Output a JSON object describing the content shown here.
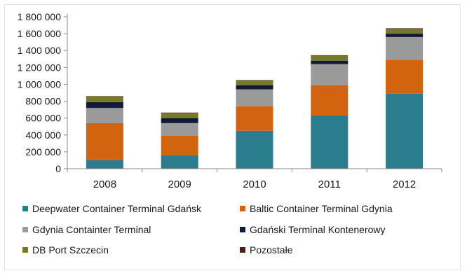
{
  "chart_data": {
    "type": "bar",
    "stacked": true,
    "title": "",
    "xlabel": "",
    "ylabel": "",
    "ylim": [
      0,
      1800000
    ],
    "yticks": [
      0,
      200000,
      400000,
      600000,
      800000,
      1000000,
      1200000,
      1400000,
      1600000,
      1800000
    ],
    "ytick_labels": [
      "0",
      "200 000",
      "400 000",
      "600 000",
      "800 000",
      "1 000 000",
      "1 200 000",
      "1 400 000",
      "1 600 000",
      "1 800 000"
    ],
    "categories": [
      "2008",
      "2009",
      "2010",
      "2011",
      "2012"
    ],
    "series": [
      {
        "name": "Deepwater Container Terminal Gdańsk",
        "color": "#2a7d8c",
        "values": [
          100000,
          160000,
          450000,
          630000,
          890000
        ]
      },
      {
        "name": "Baltic Container Terminal Gdynia",
        "color": "#d2630f",
        "values": [
          440000,
          230000,
          290000,
          360000,
          400000
        ]
      },
      {
        "name": "Gdynia Containter Terminal",
        "color": "#9a9a9a",
        "values": [
          180000,
          150000,
          200000,
          250000,
          270000
        ]
      },
      {
        "name": "Gdański Terminal Kontenerowy",
        "color": "#111a36",
        "values": [
          70000,
          60000,
          50000,
          40000,
          40000
        ]
      },
      {
        "name": "DB Port Szczecin",
        "color": "#767a24",
        "values": [
          65000,
          60000,
          55000,
          60000,
          60000
        ]
      },
      {
        "name": "Pozostałe",
        "color": "#4b1f14",
        "values": [
          5000,
          5000,
          5000,
          5000,
          5000
        ]
      }
    ],
    "grid": false,
    "legend_position": "bottom"
  }
}
